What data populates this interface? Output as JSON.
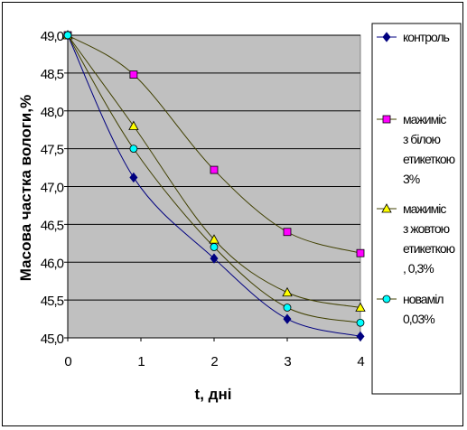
{
  "chart_data": {
    "type": "line",
    "title": "",
    "xlabel": "t, дні",
    "ylabel": "Масова частка вологи,%",
    "x": [
      0,
      0.9,
      2,
      3,
      4
    ],
    "xticks": [
      "0",
      "1",
      "2",
      "3",
      "4"
    ],
    "xlim": [
      0,
      4
    ],
    "ylim": [
      45.0,
      49.0
    ],
    "yticks": [
      "45,0",
      "45,5",
      "46,0",
      "46,5",
      "47,0",
      "47,5",
      "48,0",
      "48,5",
      "49,0"
    ],
    "grid": true,
    "legend_position": "right",
    "series": [
      {
        "name_lines": [
          "контроль"
        ],
        "color": "#000080",
        "marker": "diamond",
        "values": [
          49.0,
          47.12,
          46.05,
          45.25,
          45.02
        ]
      },
      {
        "name_lines": [
          "мажиміс",
          "з білою",
          "етикеткою",
          "3%"
        ],
        "color": "#ff00ff",
        "marker": "square",
        "values": [
          49.0,
          48.48,
          47.22,
          46.4,
          46.12
        ]
      },
      {
        "name_lines": [
          "мажиміс",
          "з жовтою",
          "етикеткою",
          ", 0,3%"
        ],
        "color": "#ffff00",
        "marker": "triangle",
        "values": [
          49.0,
          47.8,
          46.3,
          45.6,
          45.4
        ]
      },
      {
        "name_lines": [
          "новаміл",
          "0,03%"
        ],
        "color": "#00ffff",
        "marker": "circle",
        "values": [
          49.0,
          47.5,
          46.2,
          45.4,
          45.2
        ]
      }
    ]
  }
}
